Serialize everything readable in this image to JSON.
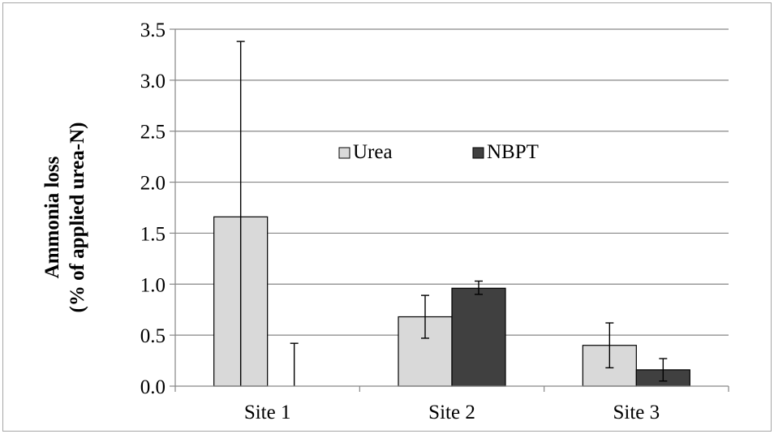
{
  "chart_data": {
    "type": "bar",
    "title": "",
    "xlabel": "",
    "ylabel_lines": [
      "Ammonia loss",
      "(% of applied urea-N)"
    ],
    "categories": [
      "Site 1",
      "Site 2",
      "Site 3"
    ],
    "series": [
      {
        "name": "Urea",
        "color": "#d9d9d9",
        "values": [
          1.66,
          0.68,
          0.4
        ],
        "err_low": [
          0.0,
          0.47,
          0.18
        ],
        "err_high": [
          3.38,
          0.89,
          0.62
        ]
      },
      {
        "name": "NBPT",
        "color": "#404040",
        "values": [
          0.0,
          0.96,
          0.16
        ],
        "err_low": [
          0.0,
          0.9,
          0.05
        ],
        "err_high": [
          0.42,
          1.03,
          0.27
        ]
      }
    ],
    "ylim": [
      0,
      3.5
    ],
    "yticks": [
      "0.0",
      "0.5",
      "1.0",
      "1.5",
      "2.0",
      "2.5",
      "3.0",
      "3.5"
    ],
    "ytick_values": [
      0,
      0.5,
      1.0,
      1.5,
      2.0,
      2.5,
      3.0,
      3.5
    ],
    "grid": true,
    "legend_position": "inside-center"
  }
}
